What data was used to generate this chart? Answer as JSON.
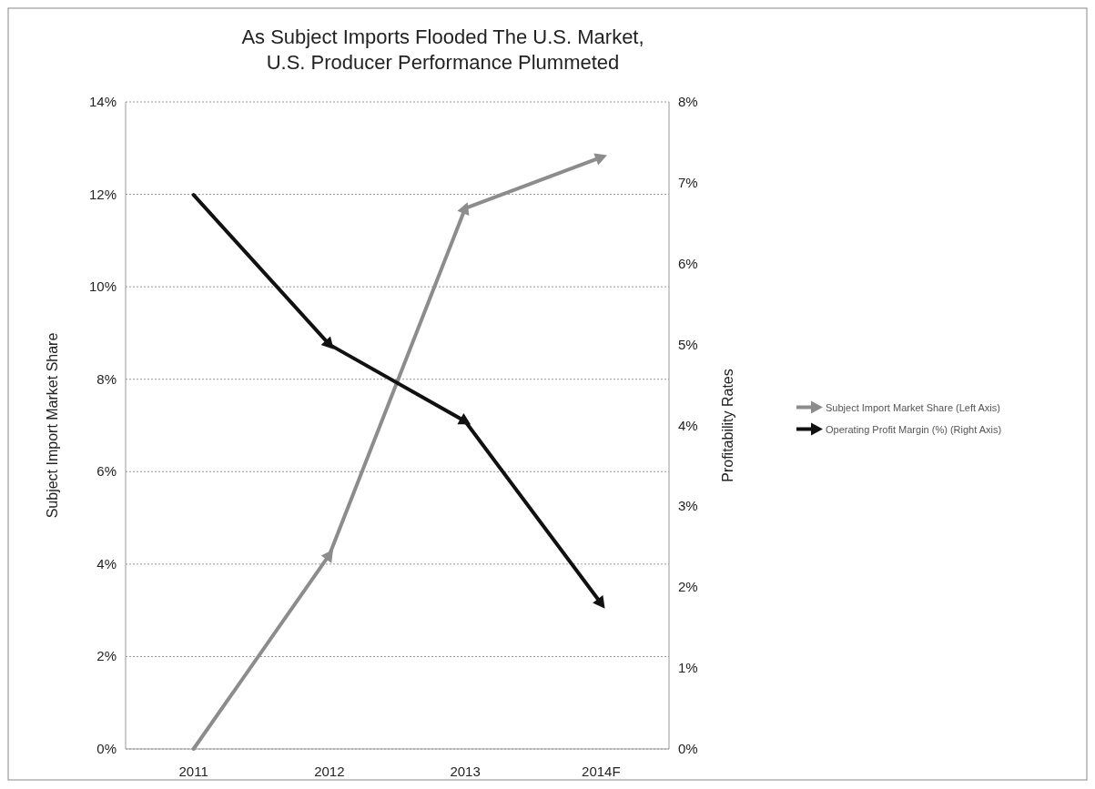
{
  "chart_data": {
    "type": "line",
    "title": "As Subject Imports Flooded The U.S. Market,\nU.S. Producer Performance Plummeted",
    "ylabel": "Subject Import Market Share",
    "y2label": "Profitability Rates",
    "categories": [
      "2011",
      "2012",
      "2013",
      "2014F"
    ],
    "series": [
      {
        "name": "Subject Import Market Share (Left Axis)",
        "color": "#8c8c8c",
        "values": [
          0,
          4.2,
          11.7,
          12.8
        ]
      },
      {
        "name": "Operating Profit Margin (%) (Right Axis)",
        "color": "#111111",
        "values": [
          6.85,
          5.0,
          4.05,
          1.8
        ],
        "axis": "y2"
      }
    ],
    "ylim": [
      0,
      14
    ],
    "yticks": [
      {
        "value": 0,
        "label": "0%"
      },
      {
        "value": 2,
        "label": "2%"
      },
      {
        "value": 4,
        "label": "4%"
      },
      {
        "value": 6,
        "label": "6%"
      },
      {
        "value": 8,
        "label": "8%"
      },
      {
        "value": 10,
        "label": "10%"
      },
      {
        "value": 12,
        "label": "12%"
      },
      {
        "value": 14,
        "label": "14%"
      }
    ],
    "y2lim": [
      0,
      8
    ],
    "y2ticks": [
      {
        "value": 0,
        "label": "0%"
      },
      {
        "value": 1,
        "label": "1%"
      },
      {
        "value": 2,
        "label": "2%"
      },
      {
        "value": 3,
        "label": "3%"
      },
      {
        "value": 4,
        "label": "4%"
      },
      {
        "value": 5,
        "label": "5%"
      },
      {
        "value": 6,
        "label": "6%"
      },
      {
        "value": 7,
        "label": "7%"
      },
      {
        "value": 8,
        "label": "8%"
      }
    ],
    "grid": "y",
    "legend": "right",
    "marker": "triangle",
    "line_style": "solid"
  }
}
